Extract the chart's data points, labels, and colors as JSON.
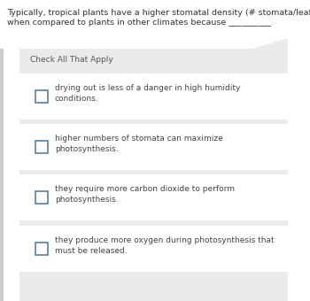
{
  "bg_color": "#ffffff",
  "panel_color": "#ebebeb",
  "row_color": "#f7f7f7",
  "title_line1": "Typically, tropical plants have a higher stomatal density (# stomata/leaf area)",
  "title_line2": "when compared to plants in other climates because __________",
  "check_label": "Check All That Apply",
  "options": [
    "drying out is less of a danger in high humidity\nconditions.",
    "higher numbers of stomata can maximize\nphotosynthesis.",
    "they require more carbon dioxide to perform\nphotosynthesis.",
    "they produce more oxygen during photosynthesis that\nmust be released."
  ],
  "title_fontsize": 6.8,
  "check_fontsize": 6.5,
  "option_fontsize": 6.5,
  "title_color": "#333333",
  "check_color": "#555555",
  "option_color": "#444444",
  "checkbox_edge_color": "#5a80a0",
  "checkbox_fill_color": "#ffffff",
  "left_bar_color": "#cccccc",
  "separator_color": "#e0e0e0"
}
